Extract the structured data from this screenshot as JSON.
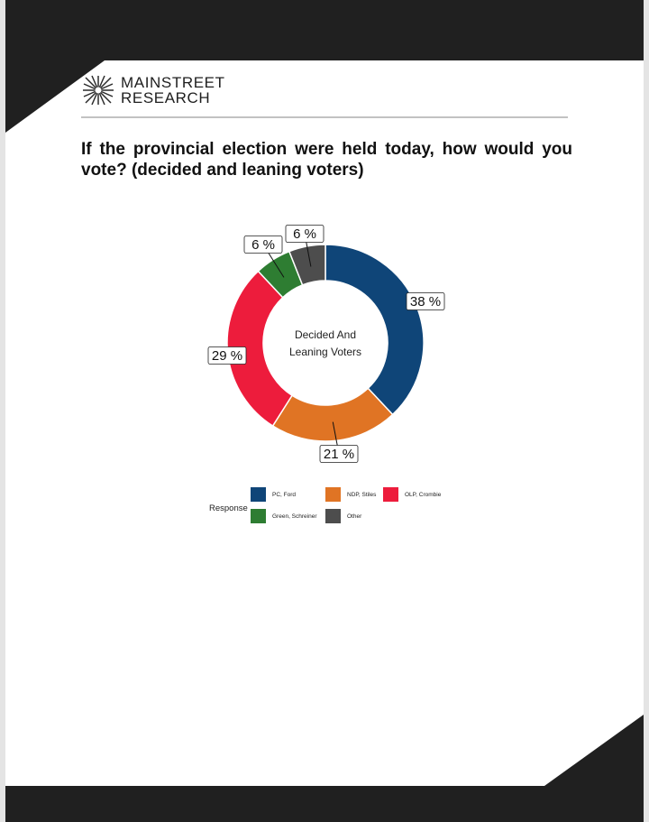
{
  "brand": {
    "line1": "MAINSTREET",
    "line2": "RESEARCH",
    "logo_icon": "starburst-icon"
  },
  "question": "If the provincial election were held today, how would you vote? (decided and leaning voters)",
  "chart_data": {
    "type": "pie",
    "variant": "donut",
    "center_label": [
      "Decided And",
      "Leaning Voters"
    ],
    "legend_title": "Response",
    "legend_position": "bottom",
    "label_suffix": " %",
    "slices": [
      {
        "label": "PC, Ford",
        "value": 38,
        "color": "#0f4578"
      },
      {
        "label": "NDP, Stiles",
        "value": 21,
        "color": "#e07424"
      },
      {
        "label": "OLP, Crombie",
        "value": 29,
        "color": "#ed1c3c"
      },
      {
        "label": "Green, Schreiner",
        "value": 6,
        "color": "#2e7d32"
      },
      {
        "label": "Other",
        "value": 6,
        "color": "#4d4d4d"
      }
    ]
  }
}
